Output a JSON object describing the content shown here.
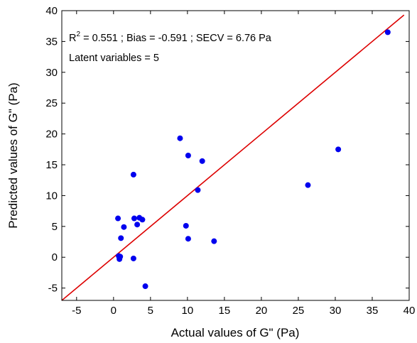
{
  "chart_data": {
    "type": "scatter",
    "xlabel": "Actual values of G\" (Pa)",
    "ylabel": "Predicted values of G\" (Pa)",
    "xlim": [
      -7,
      40
    ],
    "ylim": [
      -7,
      40
    ],
    "x_ticks": [
      -5,
      0,
      5,
      10,
      15,
      20,
      25,
      30,
      35,
      40
    ],
    "y_ticks": [
      -5,
      0,
      5,
      10,
      15,
      20,
      25,
      30,
      35,
      40
    ],
    "x_tick_labels": [
      "-5",
      "0",
      "5",
      "10",
      "15",
      "20",
      "25",
      "30",
      "35",
      "40"
    ],
    "y_tick_labels": [
      "-5",
      "0",
      "5",
      "10",
      "15",
      "20",
      "25",
      "30",
      "35",
      "40"
    ],
    "grid": false,
    "annotations": {
      "r2_prefix": "R",
      "r2_sup": "2",
      "stats_rest": " = 0.551 ; Bias = -0.591 ; SECV = 6.76 Pa",
      "latent": "Latent variables = 5"
    },
    "series": [
      {
        "marker_color": "#0000ee",
        "points": [
          {
            "x": 0.6,
            "y": 6.3
          },
          {
            "x": 0.7,
            "y": 0.2
          },
          {
            "x": 0.8,
            "y": -0.3
          },
          {
            "x": 0.9,
            "y": 0.1
          },
          {
            "x": 1.0,
            "y": 3.1
          },
          {
            "x": 1.4,
            "y": 4.9
          },
          {
            "x": 2.7,
            "y": 13.4
          },
          {
            "x": 2.7,
            "y": -0.2
          },
          {
            "x": 2.8,
            "y": 6.3
          },
          {
            "x": 3.2,
            "y": 5.3
          },
          {
            "x": 3.5,
            "y": 6.4
          },
          {
            "x": 3.9,
            "y": 6.1
          },
          {
            "x": 4.3,
            "y": -4.7
          },
          {
            "x": 9.0,
            "y": 19.3
          },
          {
            "x": 9.8,
            "y": 5.1
          },
          {
            "x": 10.1,
            "y": 16.5
          },
          {
            "x": 10.1,
            "y": 3.0
          },
          {
            "x": 11.4,
            "y": 10.9
          },
          {
            "x": 12.0,
            "y": 15.6
          },
          {
            "x": 13.6,
            "y": 2.6
          },
          {
            "x": 26.3,
            "y": 11.7
          },
          {
            "x": 30.4,
            "y": 17.5
          },
          {
            "x": 37.1,
            "y": 36.5
          }
        ]
      }
    ],
    "fit_line": {
      "color": "#dd0000",
      "x": [
        -7,
        39.3
      ],
      "y": [
        -7,
        39.3
      ]
    }
  }
}
